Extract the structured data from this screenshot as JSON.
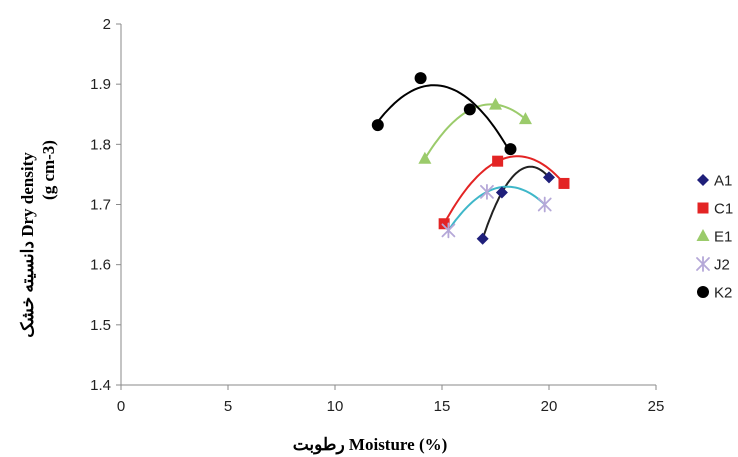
{
  "chart_data": {
    "type": "scatter",
    "xlabel": "رطوبت Moisture (%)",
    "ylabel": "دانسیته خشک Dry density",
    "ylabel_unit": "(g cm-3)",
    "xlim": [
      0,
      25
    ],
    "ylim": [
      1.4,
      2.0
    ],
    "xticks": [
      "0",
      "5",
      "10",
      "15",
      "20",
      "25"
    ],
    "yticks": [
      "1.4",
      "1.5",
      "1.6",
      "1.7",
      "1.8",
      "1.9",
      "2"
    ],
    "grid": false,
    "legend_position": "right",
    "series": [
      {
        "name": "A1",
        "color": "#1f1f7a",
        "marker": "diamond",
        "curve_color": "#222222",
        "x": [
          16.9,
          17.8,
          20.0
        ],
        "y": [
          1.643,
          1.72,
          1.745
        ]
      },
      {
        "name": "C1",
        "color": "#e32424",
        "marker": "square",
        "curve_color": "#e32424",
        "x": [
          15.1,
          17.6,
          20.7
        ],
        "y": [
          1.668,
          1.772,
          1.735
        ]
      },
      {
        "name": "E1",
        "color": "#9bcb6b",
        "marker": "triangle",
        "curve_color": "#9bcb6b",
        "x": [
          14.2,
          17.5,
          18.9
        ],
        "y": [
          1.776,
          1.866,
          1.842
        ]
      },
      {
        "name": "J2",
        "color": "#b5a8d8",
        "marker": "asterisk",
        "curve_color": "#3fb7c9",
        "x": [
          15.3,
          17.1,
          19.8
        ],
        "y": [
          1.657,
          1.721,
          1.7
        ]
      },
      {
        "name": "K2",
        "color": "#000000",
        "marker": "circle",
        "curve_color": "#000000",
        "x": [
          12.0,
          14.0,
          16.3,
          18.2
        ],
        "y": [
          1.832,
          1.91,
          1.858,
          1.792
        ]
      }
    ]
  }
}
